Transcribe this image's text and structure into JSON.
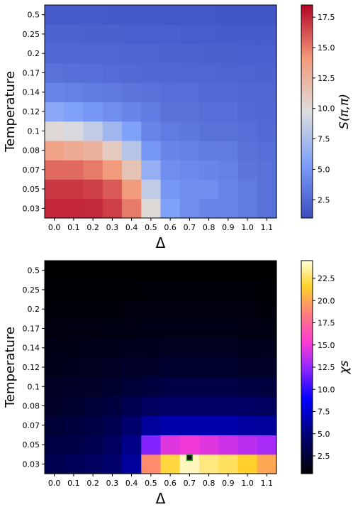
{
  "chart_data": [
    {
      "type": "heatmap",
      "colormap": "coolwarm",
      "xlabel": "Δ",
      "ylabel": "Temperature",
      "colorbar_label": "S(π,π)",
      "x_ticks": [
        "0.0",
        "0.1",
        "0.2",
        "0.3",
        "0.4",
        "0.5",
        "0.6",
        "0.7",
        "0.8",
        "0.9",
        "1.0",
        "1.1"
      ],
      "y_ticks": [
        "0.03",
        "0.05",
        "0.07",
        "0.08",
        "0.1",
        "0.12",
        "0.14",
        "0.17",
        "0.2",
        "0.25",
        "0.5"
      ],
      "colorbar_ticks": [
        "2.5",
        "5.0",
        "7.5",
        "10.0",
        "12.5",
        "15.0",
        "17.5"
      ],
      "value_range": [
        1.0,
        18.5
      ],
      "values": [
        [
          17.5,
          17.5,
          17.4,
          16.8,
          15.0,
          10.0,
          5.5,
          4.5,
          4.0,
          4.0,
          3.5,
          3.0
        ],
        [
          17.0,
          17.0,
          16.8,
          16.0,
          14.0,
          8.5,
          5.0,
          4.5,
          4.5,
          4.0,
          3.5,
          3.0
        ],
        [
          15.5,
          15.5,
          15.0,
          14.0,
          11.5,
          6.5,
          4.5,
          4.2,
          4.0,
          3.8,
          3.2,
          3.0
        ],
        [
          13.5,
          13.0,
          12.5,
          11.0,
          8.0,
          5.0,
          4.0,
          3.8,
          3.5,
          3.5,
          3.0,
          2.8
        ],
        [
          10.0,
          9.5,
          8.5,
          7.0,
          5.5,
          4.0,
          3.5,
          3.3,
          3.0,
          3.0,
          2.8,
          2.6
        ],
        [
          6.0,
          5.5,
          5.0,
          4.5,
          4.0,
          3.5,
          3.0,
          3.0,
          2.8,
          2.8,
          2.6,
          2.5
        ],
        [
          4.0,
          3.8,
          3.6,
          3.4,
          3.2,
          3.0,
          2.8,
          2.8,
          2.6,
          2.6,
          2.5,
          2.4
        ],
        [
          3.0,
          2.9,
          2.8,
          2.7,
          2.6,
          2.5,
          2.5,
          2.4,
          2.4,
          2.3,
          2.3,
          2.2
        ],
        [
          2.5,
          2.5,
          2.4,
          2.4,
          2.3,
          2.3,
          2.2,
          2.2,
          2.1,
          2.1,
          2.0,
          2.0
        ],
        [
          2.2,
          2.2,
          2.1,
          2.1,
          2.0,
          2.0,
          2.0,
          1.9,
          1.9,
          1.8,
          1.8,
          1.8
        ],
        [
          1.8,
          1.8,
          1.8,
          1.7,
          1.7,
          1.7,
          1.6,
          1.6,
          1.6,
          1.5,
          1.5,
          1.5
        ]
      ]
    },
    {
      "type": "heatmap",
      "colormap": "gnuplot2",
      "xlabel": "Δ",
      "ylabel": "Temperature",
      "colorbar_label": "χs",
      "x_ticks": [
        "0.0",
        "0.1",
        "0.2",
        "0.3",
        "0.4",
        "0.5",
        "0.6",
        "0.7",
        "0.8",
        "0.9",
        "1.0",
        "1.1"
      ],
      "y_ticks": [
        "0.03",
        "0.05",
        "0.07",
        "0.08",
        "0.1",
        "0.12",
        "0.14",
        "0.17",
        "0.2",
        "0.25",
        "0.5"
      ],
      "colorbar_ticks": [
        "2.5",
        "5.0",
        "7.5",
        "10.0",
        "12.5",
        "15.0",
        "17.5",
        "20.0",
        "22.5"
      ],
      "value_range": [
        0.5,
        24.5
      ],
      "values": [
        [
          3.5,
          3.8,
          4.0,
          4.5,
          6.0,
          19.0,
          22.0,
          24.0,
          23.0,
          22.5,
          21.5,
          20.0
        ],
        [
          3.0,
          3.2,
          3.5,
          4.0,
          5.5,
          12.0,
          14.5,
          15.0,
          14.5,
          14.0,
          13.5,
          13.0
        ],
        [
          2.5,
          2.8,
          3.0,
          3.5,
          4.5,
          6.0,
          6.5,
          6.5,
          6.5,
          6.5,
          6.2,
          6.0
        ],
        [
          2.0,
          2.2,
          2.5,
          2.8,
          3.5,
          4.0,
          4.2,
          4.3,
          4.3,
          4.3,
          4.2,
          4.0
        ],
        [
          1.8,
          1.9,
          2.0,
          2.2,
          2.5,
          2.8,
          3.0,
          3.0,
          3.0,
          3.0,
          2.9,
          2.8
        ],
        [
          1.5,
          1.6,
          1.7,
          1.8,
          2.0,
          2.1,
          2.2,
          2.2,
          2.2,
          2.2,
          2.1,
          2.0
        ],
        [
          1.3,
          1.3,
          1.4,
          1.5,
          1.6,
          1.6,
          1.7,
          1.7,
          1.7,
          1.7,
          1.6,
          1.6
        ],
        [
          1.0,
          1.1,
          1.1,
          1.2,
          1.2,
          1.3,
          1.3,
          1.3,
          1.3,
          1.3,
          1.2,
          1.2
        ],
        [
          0.8,
          0.9,
          0.9,
          0.9,
          1.0,
          1.0,
          1.0,
          1.0,
          1.0,
          1.0,
          1.0,
          0.9
        ],
        [
          0.7,
          0.7,
          0.7,
          0.7,
          0.7,
          0.8,
          0.8,
          0.8,
          0.8,
          0.8,
          0.8,
          0.7
        ],
        [
          0.5,
          0.5,
          0.5,
          0.5,
          0.5,
          0.5,
          0.5,
          0.5,
          0.5,
          0.5,
          0.5,
          0.5
        ]
      ],
      "marker": {
        "x": 0.7,
        "y": 0.03,
        "shape": "square",
        "color": "#111111",
        "edge_color": "#2ca02c"
      }
    }
  ]
}
